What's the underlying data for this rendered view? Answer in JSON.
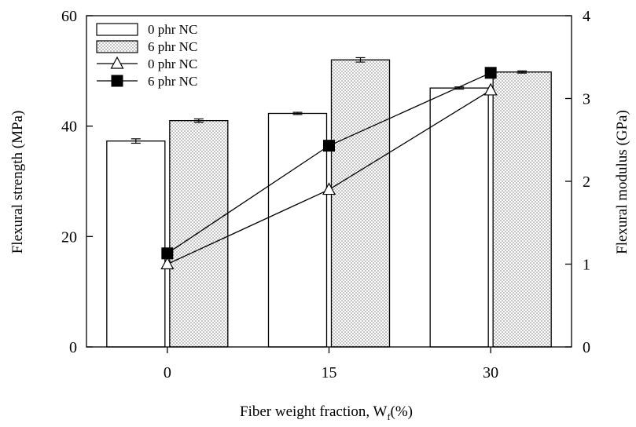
{
  "chart_data": {
    "type": "bar",
    "title": "",
    "xlabel": "Fiber weight fraction, W",
    "xlabel_sub": "f",
    "xlabel_tail": "(%)",
    "ylabel": "Flexural strength (MPa)",
    "ylabel_right": "Flexural modulus (GPa)",
    "categories": [
      "0",
      "15",
      "30"
    ],
    "ylim": [
      0,
      60
    ],
    "yticks": [
      "0",
      "20",
      "40",
      "60"
    ],
    "ylim_right": [
      0,
      4
    ],
    "yticks_right": [
      "0",
      "1",
      "2",
      "3",
      "4"
    ],
    "bar_series": [
      {
        "name": "0 phr NC",
        "axis": "left",
        "pattern": "open",
        "values": [
          37.3,
          42.3,
          46.9
        ],
        "errors": [
          0.4,
          0.2,
          0.2
        ]
      },
      {
        "name": "6 phr NC",
        "axis": "left",
        "pattern": "dotted",
        "values": [
          41.0,
          52.0,
          49.8
        ],
        "errors": [
          0.3,
          0.4,
          0.2
        ]
      }
    ],
    "line_series": [
      {
        "name": "0 phr NC",
        "axis": "right",
        "marker": "open-triangle",
        "values": [
          1.0,
          1.9,
          3.1
        ]
      },
      {
        "name": "6 phr NC",
        "axis": "right",
        "marker": "filled-square",
        "values": [
          1.13,
          2.43,
          3.31
        ]
      }
    ],
    "legend_position": "top-left",
    "grid": false
  }
}
